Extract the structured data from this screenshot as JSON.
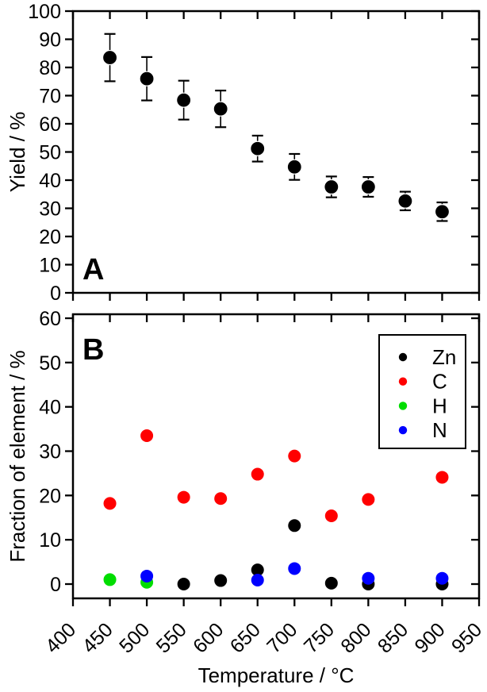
{
  "x_axis_label": "Temperature / °C",
  "colors": {
    "axis": "#000000",
    "background": "#ffffff",
    "zn": "#000000",
    "c": "#ff0000",
    "h": "#00dd00",
    "n": "#0000ff"
  },
  "chart_data": [
    {
      "type": "scatter",
      "panel_label": "A",
      "title": "",
      "xlabel": "Temperature / °C",
      "ylabel": "Yield / %",
      "xlim": [
        400,
        950
      ],
      "ylim": [
        0,
        100
      ],
      "xticks": [
        400,
        450,
        500,
        550,
        600,
        650,
        700,
        750,
        800,
        850,
        900,
        950
      ],
      "yticks": [
        0,
        10,
        20,
        30,
        40,
        50,
        60,
        70,
        80,
        90,
        100
      ],
      "grid": false,
      "legend": null,
      "series": [
        {
          "name": "Yield",
          "color": "#000000",
          "marker": "circle",
          "x": [
            450,
            500,
            550,
            600,
            650,
            700,
            750,
            800,
            850,
            900
          ],
          "y": [
            83.5,
            76.0,
            68.4,
            65.3,
            51.2,
            44.7,
            37.6,
            37.6,
            32.6,
            28.8
          ],
          "yerr": [
            8.4,
            7.7,
            6.9,
            6.5,
            4.6,
            4.6,
            3.7,
            3.5,
            3.3,
            3.3
          ]
        }
      ]
    },
    {
      "type": "scatter",
      "panel_label": "B",
      "title": "",
      "xlabel": "Temperature / °C",
      "ylabel": "Fraction of element / %",
      "xlim": [
        400,
        950
      ],
      "ylim": [
        0,
        60
      ],
      "xticks": [
        400,
        450,
        500,
        550,
        600,
        650,
        700,
        750,
        800,
        850,
        900,
        950
      ],
      "yticks": [
        0,
        10,
        20,
        30,
        40,
        50,
        60
      ],
      "grid": false,
      "legend": {
        "position": "top-right",
        "entries": [
          {
            "label": "Zn",
            "color": "#000000"
          },
          {
            "label": "C",
            "color": "#ff0000"
          },
          {
            "label": "H",
            "color": "#00dd00"
          },
          {
            "label": "N",
            "color": "#0000ff"
          }
        ]
      },
      "series": [
        {
          "name": "Zn",
          "color": "#000000",
          "marker": "circle",
          "x": [
            550,
            600,
            650,
            700,
            750,
            800,
            900
          ],
          "y": [
            0.0,
            0.8,
            3.2,
            13.2,
            0.2,
            0.0,
            0.0
          ]
        },
        {
          "name": "C",
          "color": "#ff0000",
          "marker": "circle",
          "x": [
            450,
            500,
            550,
            600,
            650,
            700,
            750,
            800,
            900
          ],
          "y": [
            18.2,
            33.5,
            19.6,
            19.3,
            24.8,
            28.9,
            15.4,
            19.1,
            24.1
          ]
        },
        {
          "name": "H",
          "color": "#00dd00",
          "marker": "circle",
          "x": [
            450,
            500
          ],
          "y": [
            1.0,
            0.4
          ]
        },
        {
          "name": "N",
          "color": "#0000ff",
          "marker": "circle",
          "x": [
            500,
            650,
            700,
            800,
            900
          ],
          "y": [
            1.8,
            0.9,
            3.5,
            1.3,
            1.3
          ]
        }
      ]
    }
  ]
}
